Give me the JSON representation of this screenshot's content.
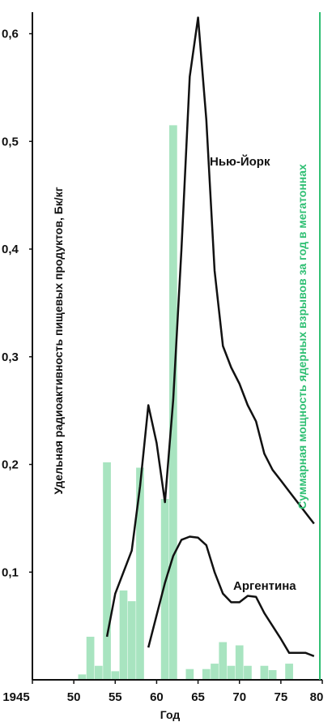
{
  "chart_data": {
    "type": "bar+line",
    "xlabel": "Год",
    "ylabel": "Удельная радиоактивность пищевых продуктов, Бк/кг",
    "y2label": "Суммарная мощность ядерных взрывов за год в мегатоннах",
    "xlim": [
      1945,
      1980
    ],
    "ylim": [
      0,
      0.62
    ],
    "x_ticks": [
      1945,
      1950,
      1955,
      1960,
      1965,
      1970,
      1975,
      1980
    ],
    "x_tick_labels": [
      "1945",
      "50",
      "55",
      "60",
      "65",
      "70",
      "75",
      "80"
    ],
    "y_ticks": [
      0.1,
      0.2,
      0.3,
      0.4,
      0.5,
      0.6
    ],
    "y_tick_labels": [
      "0,1",
      "0,2",
      "0,3",
      "0,4",
      "0,5",
      "0,6"
    ],
    "bars": {
      "x": [
        1951,
        1952,
        1953,
        1954,
        1955,
        1956,
        1957,
        1958,
        1961,
        1962,
        1964,
        1966,
        1967,
        1968,
        1969,
        1970,
        1971,
        1973,
        1974,
        1976
      ],
      "values": [
        0.005,
        0.04,
        0.013,
        0.202,
        0.008,
        0.083,
        0.073,
        0.197,
        0.168,
        0.515,
        0.01,
        0.01,
        0.015,
        0.035,
        0.013,
        0.032,
        0.013,
        0.013,
        0.009,
        0.015
      ]
    },
    "series": [
      {
        "name": "Нью-Йорк",
        "x": [
          1954,
          1955,
          1957,
          1958,
          1959,
          1960,
          1961,
          1962,
          1963,
          1964,
          1965,
          1966,
          1967,
          1968,
          1969,
          1970,
          1971,
          1972,
          1973,
          1974,
          1975,
          1976,
          1977,
          1978,
          1979
        ],
        "values": [
          0.04,
          0.08,
          0.12,
          0.18,
          0.255,
          0.22,
          0.165,
          0.26,
          0.4,
          0.56,
          0.615,
          0.52,
          0.38,
          0.31,
          0.29,
          0.275,
          0.255,
          0.24,
          0.21,
          0.195,
          0.185,
          0.175,
          0.165,
          0.155,
          0.145
        ]
      },
      {
        "name": "Аргентина",
        "x": [
          1959,
          1960,
          1961,
          1962,
          1963,
          1964,
          1965,
          1966,
          1967,
          1968,
          1969,
          1970,
          1971,
          1972,
          1973,
          1974,
          1975,
          1976,
          1977,
          1978,
          1979
        ],
        "values": [
          0.03,
          0.06,
          0.09,
          0.115,
          0.13,
          0.133,
          0.132,
          0.125,
          0.1,
          0.08,
          0.072,
          0.072,
          0.078,
          0.077,
          0.062,
          0.05,
          0.038,
          0.025,
          0.025,
          0.025,
          0.022
        ]
      }
    ],
    "colors": {
      "bars": "#a8e4c0",
      "lines": "#111111",
      "right_axis": "#2fbf73"
    },
    "grid": false,
    "legend": "none"
  }
}
